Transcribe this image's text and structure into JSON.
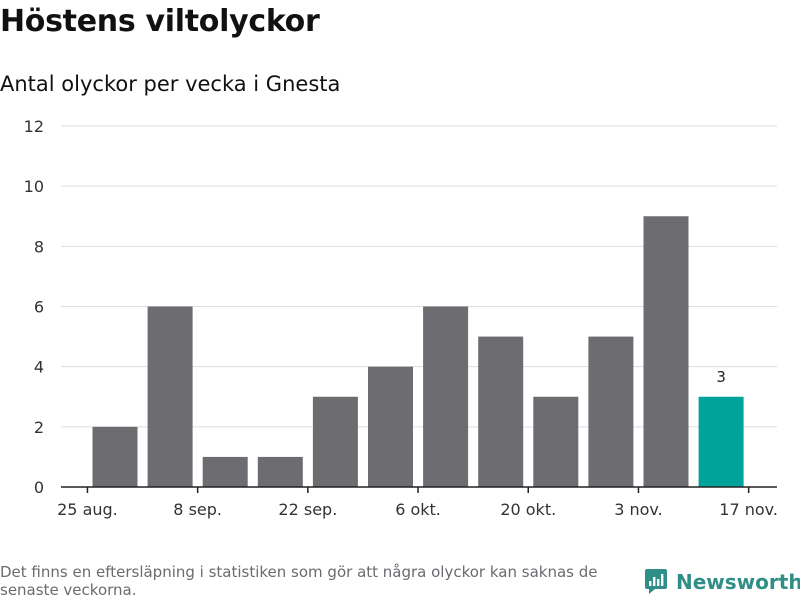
{
  "header": {
    "title": "Höstens viltolyckor",
    "subtitle": "Antal olyckor per vecka i Gnesta"
  },
  "footer": {
    "note": "Det finns en eftersläpning i statistiken som gör att några olyckor kan saknas de senaste veckorna.",
    "brand": "Newsworthy"
  },
  "colors": {
    "bar": "#6d6c71",
    "highlight": "#00a399",
    "grid": "#dddddd",
    "axis": "#222222",
    "brand": "#2f8f86"
  },
  "chart_data": {
    "type": "bar",
    "title": "Höstens viltolyckor",
    "subtitle": "Antal olyckor per vecka i Gnesta",
    "xlabel": "",
    "ylabel": "",
    "ylim": [
      0,
      12
    ],
    "yticks": [
      0,
      2,
      4,
      6,
      8,
      10,
      12
    ],
    "grid": true,
    "x_ticks": [
      {
        "label": "25 aug.",
        "position": -0.5
      },
      {
        "label": "8 sep.",
        "position": 1.5
      },
      {
        "label": "22 sep.",
        "position": 3.5
      },
      {
        "label": "6 okt.",
        "position": 5.5
      },
      {
        "label": "20 okt.",
        "position": 7.5
      },
      {
        "label": "3 nov.",
        "position": 9.5
      },
      {
        "label": "17 nov.",
        "position": 11.5
      }
    ],
    "values": [
      2,
      6,
      1,
      1,
      3,
      4,
      6,
      5,
      3,
      5,
      9,
      3
    ],
    "highlight_index": 11,
    "data_labels": [
      {
        "index": 11,
        "text": "3"
      }
    ]
  }
}
